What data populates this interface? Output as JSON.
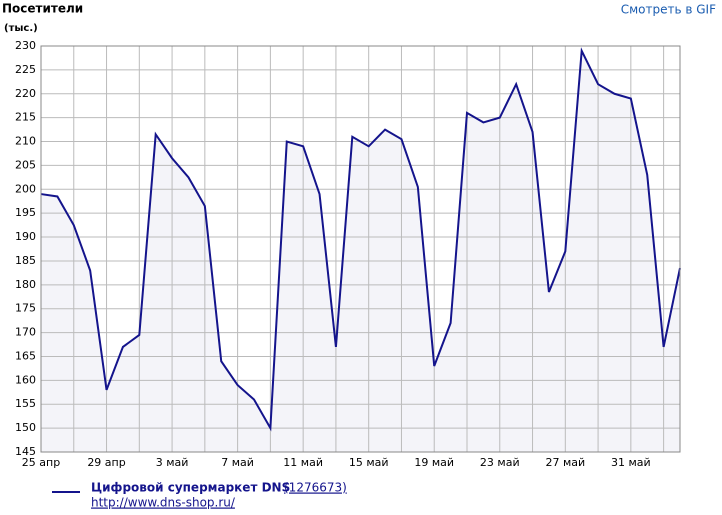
{
  "chart_data": {
    "type": "line",
    "title": "Посетители",
    "y_unit": "(тыс.)",
    "link_text": "Смотреть в GIF",
    "categories": [
      "25 апр",
      null,
      null,
      null,
      "29 апр",
      null,
      null,
      null,
      "3 май",
      null,
      null,
      null,
      "7 май",
      null,
      null,
      null,
      "11 май",
      null,
      null,
      null,
      "15 май",
      null,
      null,
      null,
      "19 май",
      null,
      null,
      null,
      "23 май",
      null,
      null,
      null,
      "27 май",
      null,
      null,
      null,
      "31 май",
      null,
      null,
      null
    ],
    "series": [
      {
        "name": "Цифровой супермаркет DNS",
        "color": "#14148c",
        "values": [
          199,
          198.5,
          192.5,
          183,
          158,
          167,
          169.5,
          211.5,
          206.5,
          202.5,
          196.5,
          164,
          159,
          156,
          150,
          210,
          209,
          199,
          167,
          211,
          209,
          212.5,
          210.5,
          200.5,
          163,
          172,
          216,
          214,
          215,
          222,
          212,
          178.5,
          187,
          229,
          222,
          220,
          219,
          203,
          167,
          183.5
        ]
      }
    ],
    "legend_id": "(1276673)",
    "legend_url": "http://www.dns-shop.ru/",
    "ylim": [
      145,
      230
    ],
    "yticks": [
      145,
      150,
      155,
      160,
      165,
      170,
      175,
      180,
      185,
      190,
      195,
      200,
      205,
      210,
      215,
      220,
      225,
      230
    ],
    "grid": true,
    "area_fill": "#f4f4f9"
  }
}
